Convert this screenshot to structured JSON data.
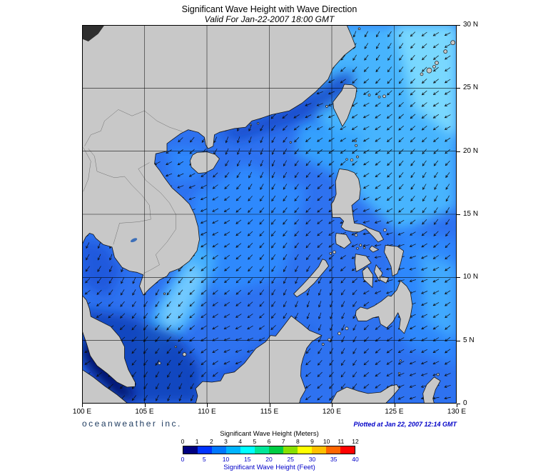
{
  "header": {
    "title": "Significant Wave Height with Wave Direction",
    "subtitle": "Valid For Jan-22-2007 18:00 GMT"
  },
  "axes": {
    "lon_ticks": [
      "100 E",
      "105 E",
      "110 E",
      "115 E",
      "120 E",
      "125 E",
      "130 E"
    ],
    "lat_ticks": [
      "0",
      "5 N",
      "10 N",
      "15 N",
      "20 N",
      "25 N",
      "30 N"
    ]
  },
  "footer": {
    "brand": "oceanweather inc.",
    "plotted_at": "Plotted at Jan 22, 2007 12:14 GMT"
  },
  "legend": {
    "meters_label": "Significant Wave Height (Meters)",
    "feet_label": "Significant Wave Height (Feet)",
    "meters_ticks": [
      0,
      1,
      2,
      3,
      4,
      5,
      6,
      7,
      8,
      9,
      10,
      11,
      12
    ],
    "feet_ticks": [
      0,
      5,
      10,
      15,
      20,
      25,
      30,
      35,
      40
    ],
    "colors": [
      "#000080",
      "#0033ff",
      "#0077ff",
      "#00b4ff",
      "#00ffff",
      "#00e699",
      "#00cc44",
      "#88e000",
      "#ffff00",
      "#ffc000",
      "#ff6600",
      "#ff0000"
    ]
  },
  "map": {
    "ocean_base": "#2e72f0",
    "land_color": "#c8c8c8",
    "coast_color": "#161616",
    "arrow_color": "#0d0d0d",
    "grid_color": "#000000"
  }
}
